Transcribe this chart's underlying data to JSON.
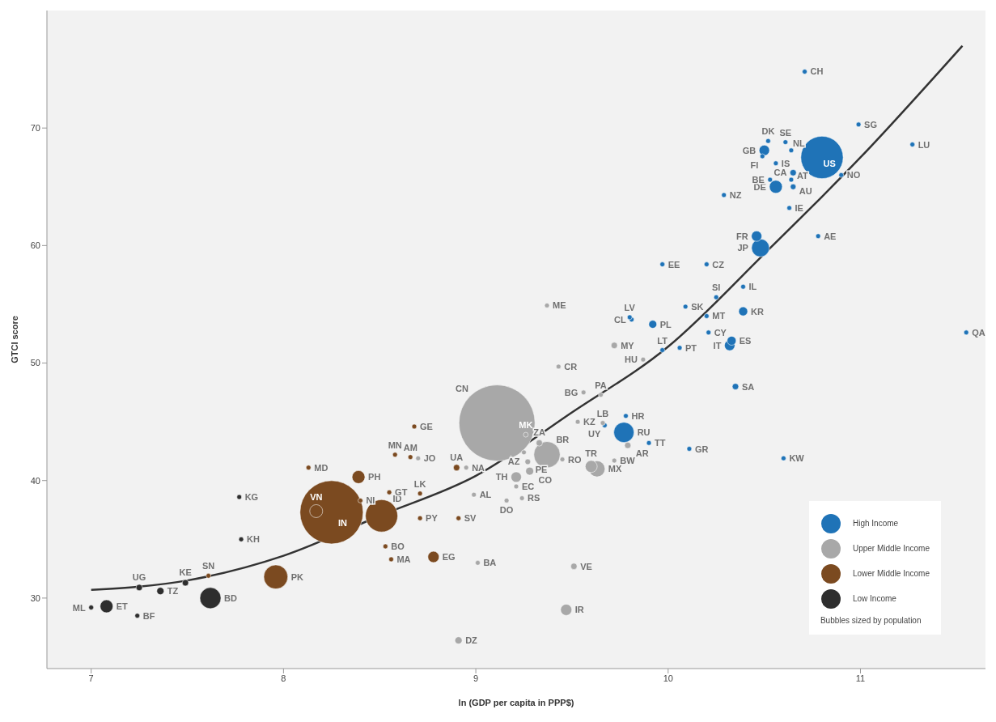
{
  "chart_data": {
    "type": "bubble",
    "xlabel": "ln (GDP per capita in PPP$)",
    "ylabel": "GTCI score",
    "xlim": [
      6.77,
      11.65
    ],
    "ylim": [
      24,
      80
    ],
    "xticks": [
      7,
      8,
      9,
      10,
      11
    ],
    "yticks": [
      30,
      40,
      50,
      60,
      70
    ],
    "legend": "bottom right",
    "annotations": [
      "Bubbles sized by population"
    ],
    "series": [
      {
        "name": "High Income",
        "color": "#1f73b7",
        "x": [
          10.8,
          9.77,
          10.48,
          10.56,
          10.5,
          10.46,
          10.32,
          10.39,
          10.33,
          9.92,
          10.65,
          10.35,
          10.65,
          10.64,
          9.81,
          10.11,
          10.71,
          10.99,
          11.27,
          10.52,
          10.61,
          10.49,
          10.56,
          10.53,
          10.64,
          10.9,
          10.29,
          10.63,
          10.78,
          9.97,
          10.2,
          10.39,
          10.25,
          10.09,
          10.2,
          9.8,
          10.21,
          10.06,
          9.97,
          9.78,
          9.67,
          9.9,
          10.6,
          11.55
        ],
        "values": [
          67.5,
          44.1,
          59.8,
          65.0,
          68.1,
          60.8,
          51.5,
          54.4,
          51.9,
          53.3,
          66.2,
          48.0,
          65.0,
          68.1,
          53.7,
          42.7,
          74.8,
          70.3,
          68.6,
          68.9,
          68.8,
          67.6,
          67.0,
          65.6,
          65.6,
          66.0,
          64.3,
          63.2,
          60.8,
          58.4,
          58.4,
          56.5,
          55.6,
          54.8,
          54.0,
          53.9,
          52.6,
          51.3,
          51.1,
          45.5,
          44.7,
          43.2,
          41.9,
          52.6
        ],
        "sizes": [
          0.31,
          0.071,
          0.055,
          0.029,
          0.019,
          0.019,
          0.019,
          0.014,
          0.014,
          0.011,
          0.007,
          0.007,
          0.0055,
          0.004,
          0.004,
          0.004,
          0.004,
          0.004,
          0.004,
          0.004,
          0.004,
          0.004,
          0.004,
          0.004,
          0.004,
          0.004,
          0.004,
          0.004,
          0.004,
          0.004,
          0.004,
          0.004,
          0.004,
          0.004,
          0.004,
          0.004,
          0.004,
          0.004,
          0.004,
          0.004,
          0.004,
          0.004,
          0.004,
          0.004
        ],
        "value_labels": [
          "US",
          "RU",
          "JP",
          "DE",
          "GB",
          "FR",
          "IT",
          "KR",
          "ES",
          "PL",
          "CA",
          "SA",
          "AU",
          "NL",
          "CL",
          "GR",
          "CH",
          "SG",
          "LU",
          "DK",
          "SE",
          "FI",
          "IS",
          "BE",
          "AT",
          "NO",
          "NZ",
          "IE",
          "AE",
          "EE",
          "CZ",
          "IL",
          "SI",
          "SK",
          "MT",
          "LV",
          "CY",
          "PT",
          "LT",
          "HR",
          "UY",
          "TT",
          "KW",
          "QA"
        ]
      },
      {
        "name": "Upper Middle Income",
        "color": "#a8a8a8",
        "x": [
          9.11,
          9.37,
          9.63,
          9.6,
          9.47,
          9.21,
          9.28,
          8.91,
          9.33,
          9.79,
          9.72,
          9.51,
          9.27,
          9.45,
          9.53,
          9.21,
          9.37,
          9.87,
          9.43,
          9.26,
          9.56,
          9.65,
          9.66,
          8.7,
          8.95,
          9.25,
          9.72,
          9.24,
          8.99,
          9.16,
          9.01
        ],
        "values": [
          44.9,
          42.2,
          41.0,
          41.2,
          29.0,
          40.3,
          40.8,
          26.4,
          43.2,
          43.0,
          51.5,
          32.7,
          41.6,
          41.8,
          45.0,
          39.5,
          54.9,
          50.3,
          49.7,
          43.9,
          47.5,
          47.3,
          44.9,
          41.9,
          41.1,
          42.4,
          41.7,
          38.5,
          38.8,
          38.3,
          33.0
        ],
        "sizes": [
          1,
          0.12,
          0.045,
          0.025,
          0.022,
          0.019,
          0.011,
          0.009,
          0.007,
          0.007,
          0.007,
          0.007,
          0.0055,
          0.004,
          0.004,
          0.004,
          0.004,
          0.004,
          0.004,
          0.004,
          0.004,
          0.004,
          0.004,
          0.004,
          0.004,
          0.004,
          0.004,
          0.004,
          0.004,
          0.004,
          0.004
        ],
        "value_labels": [
          "CN",
          "BR",
          "MX",
          "TR",
          "IR",
          "TH",
          "CO",
          "DZ",
          "ZA",
          "AR",
          "MY",
          "VE",
          "PE",
          "RO",
          "KZ",
          "EC",
          "ME",
          "HU",
          "CR",
          "MK",
          "BG",
          "PA",
          "LB",
          "JO",
          "NA",
          "AZ",
          "BW",
          "RS",
          "AL",
          "DO",
          "BA"
        ]
      },
      {
        "name": "Lower Middle Income",
        "color": "#7b4a20",
        "x": [
          8.25,
          8.51,
          7.96,
          8.39,
          8.17,
          8.78,
          8.9,
          8.56,
          8.71,
          8.55,
          7.61,
          8.13,
          8.4,
          8.58,
          8.68,
          8.66,
          8.53,
          8.71,
          8.91
        ],
        "values": [
          37.3,
          37.0,
          31.8,
          40.3,
          37.4,
          33.5,
          41.1,
          33.3,
          38.9,
          39.0,
          31.9,
          41.1,
          38.3,
          42.2,
          44.6,
          42.0,
          34.4,
          36.8,
          36.8
        ],
        "sizes": [
          0.69,
          0.18,
          0.1,
          0.029,
          0.029,
          0.022,
          0.007,
          0.004,
          0.004,
          0.004,
          0.004,
          0.004,
          0.004,
          0.004,
          0.004,
          0.004,
          0.004,
          0.004,
          0.004
        ],
        "value_labels": [
          "IN",
          "ID",
          "PK",
          "PH",
          "VN",
          "EG",
          "UA",
          "MA",
          "LK",
          "GT",
          "SN",
          "MD",
          "NI",
          "MN",
          "GE",
          "AM",
          "BO",
          "PY",
          "SV"
        ]
      },
      {
        "name": "Low Income",
        "color": "#2e2e2e",
        "x": [
          7.62,
          7.08,
          7.36,
          7.25,
          7.49,
          7.0,
          7.24,
          7.77,
          7.78
        ],
        "values": [
          30.0,
          29.3,
          30.6,
          30.9,
          31.3,
          29.2,
          28.5,
          38.6,
          35.0
        ],
        "sizes": [
          0.077,
          0.029,
          0.009,
          0.007,
          0.007,
          0.004,
          0.004,
          0.004,
          0.004
        ],
        "value_labels": [
          "BD",
          "ET",
          "TZ",
          "UG",
          "KE",
          "ML",
          "BF",
          "KG",
          "KH"
        ]
      },
      {
        "type": "line",
        "color": "#333333",
        "x": [
          7.0,
          7.5,
          8.0,
          8.5,
          9.0,
          9.5,
          10.0,
          10.5,
          11.0,
          11.53
        ],
        "values": [
          30.7,
          31.5,
          33.6,
          37.0,
          40.4,
          45.8,
          51.4,
          59.3,
          67.5,
          77.0
        ]
      }
    ]
  }
}
